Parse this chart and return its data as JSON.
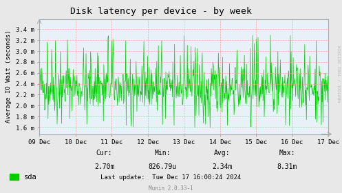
{
  "title": "Disk latency per device - by week",
  "ylabel": "Average IO Wait (seconds)",
  "line_color": "#00cc00",
  "bg_color": "#e8e8e8",
  "plot_bg_color": "#e8f0f8",
  "grid_color": "#ff9999",
  "yticks": [
    0.0016,
    0.0018,
    0.002,
    0.0022,
    0.0024,
    0.0026,
    0.0028,
    0.003,
    0.0032,
    0.0034
  ],
  "ytick_labels": [
    "1.6 m",
    "1.8 m",
    "2.0 m",
    "2.2 m",
    "2.4 m",
    "2.6 m",
    "2.8 m",
    "3.0 m",
    "3.2 m",
    "3.4 m"
  ],
  "ylim": [
    0.00148,
    0.00358
  ],
  "xtick_labels": [
    "09 Dec",
    "10 Dec",
    "11 Dec",
    "12 Dec",
    "13 Dec",
    "14 Dec",
    "15 Dec",
    "16 Dec",
    "17 Dec"
  ],
  "vline_color": "#ff9999",
  "legend_label": "sda",
  "legend_color": "#00cc00",
  "cur_val": "2.70m",
  "min_val": "826.79u",
  "avg_val": "2.34m",
  "max_val": "8.31m",
  "last_update": "Tue Dec 17 16:00:24 2024",
  "munin_version": "Munin 2.0.33-1",
  "rrdtool_label": "RRDTOOL / TOBI OETIKER",
  "seed": 42,
  "n_points": 700,
  "base_mean": 0.00234,
  "base_std": 0.00022,
  "spike_prob": 0.05,
  "title_fontsize": 9.5,
  "tick_fontsize": 6.5,
  "ylabel_fontsize": 6.5,
  "stats_fontsize": 7,
  "munin_fontsize": 5.5
}
